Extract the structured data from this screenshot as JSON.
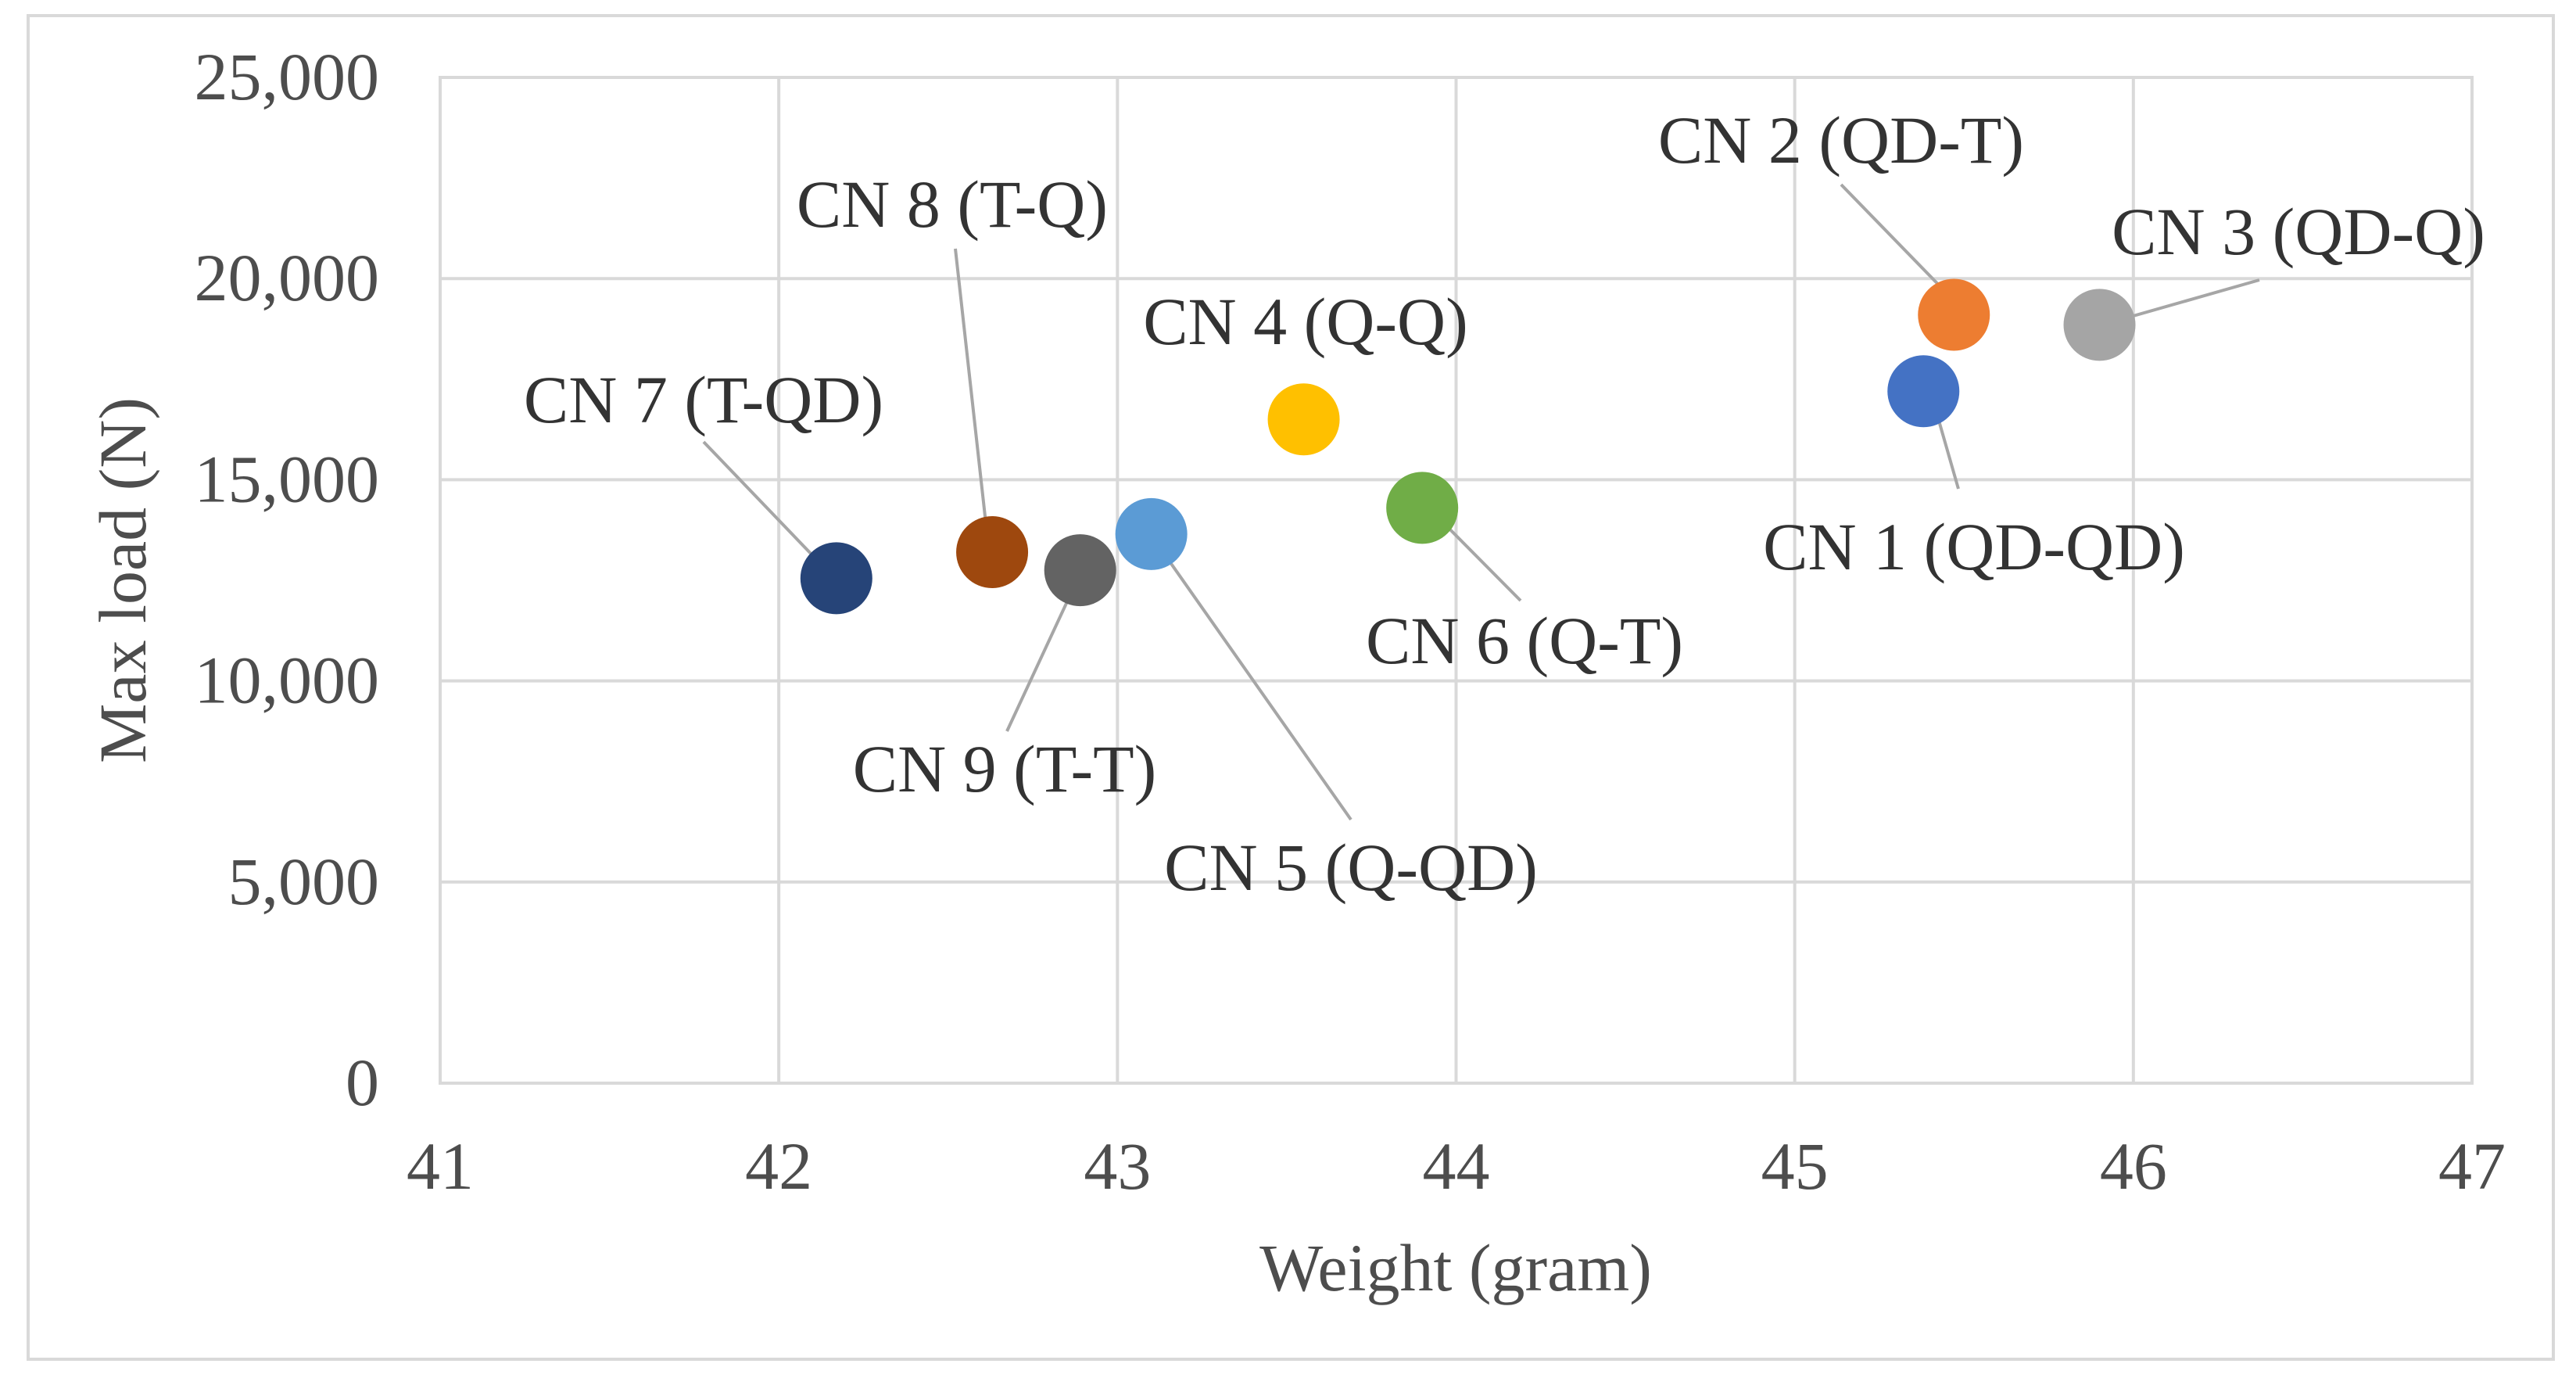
{
  "chart_data": {
    "type": "scatter",
    "title": "",
    "xlabel": "Weight (gram)",
    "ylabel": "Max load (N)",
    "xlim": [
      41,
      47
    ],
    "ylim": [
      0,
      25000
    ],
    "x_ticks": [
      41,
      42,
      43,
      44,
      45,
      46,
      47
    ],
    "x_tick_labels": [
      "41",
      "42",
      "43",
      "44",
      "45",
      "46",
      "47"
    ],
    "y_ticks": [
      0,
      5000,
      10000,
      15000,
      20000,
      25000
    ],
    "y_tick_labels": [
      "0",
      "5,000",
      "10,000",
      "15,000",
      "20,000",
      "25,000"
    ],
    "grid": true,
    "legend": "none",
    "points": [
      {
        "label": "CN 1 (QD-QD)",
        "x": 45.38,
        "y": 17200,
        "color": "#4472c4"
      },
      {
        "label": "CN 2 (QD-T)",
        "x": 45.47,
        "y": 19100,
        "color": "#ed7d31"
      },
      {
        "label": "CN 3 (QD-Q)",
        "x": 45.9,
        "y": 18850,
        "color": "#a5a5a5"
      },
      {
        "label": "CN 4 (Q-Q)",
        "x": 43.55,
        "y": 16500,
        "color": "#ffc000"
      },
      {
        "label": "CN 5 (Q-QD)",
        "x": 43.1,
        "y": 13650,
        "color": "#5b9bd5"
      },
      {
        "label": "CN 6 (Q-T)",
        "x": 43.9,
        "y": 14300,
        "color": "#70ad47"
      },
      {
        "label": "CN 7 (T-QD)",
        "x": 42.17,
        "y": 12550,
        "color": "#264478"
      },
      {
        "label": "CN 8 (T-Q)",
        "x": 42.63,
        "y": 13200,
        "color": "#9e480e"
      },
      {
        "label": "CN 9 (T-T)",
        "x": 42.89,
        "y": 12750,
        "color": "#636363"
      }
    ]
  }
}
